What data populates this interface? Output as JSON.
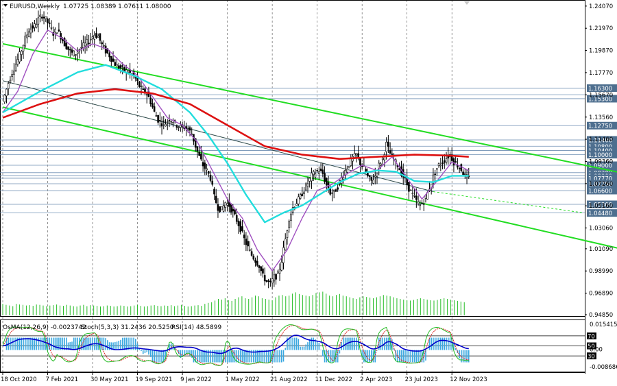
{
  "header": {
    "symbol": "EURUSD,Weekly",
    "ohlc": "1.07725 1.08389 1.07611 1.08000"
  },
  "indicator_header": {
    "osma": "OsMA(12,26,9) -0.0023742",
    "stoch": "Stoch(5,3,3) 31.2436 20.5250",
    "rsi": "RSI(14) 48.5899"
  },
  "colors": {
    "candle": "#000000",
    "volume": "#22bb22",
    "ma_purple": "#a050c0",
    "ma_cyan": "#22dddd",
    "ma_red": "#dd1111",
    "channel_green": "#22dd22",
    "trend_dark": "#2e4a4a",
    "level_line": "#6f8fb3",
    "label_bg": "#4e6f8f",
    "osma_hist": "#3aa8e0",
    "stoch_main": "#22bb22",
    "stoch_signal": "#dd2222",
    "rsi_line": "#0000cc",
    "grid": "#000000"
  },
  "chart_data": {
    "type": "candlestick",
    "timeframe": "Weekly",
    "ylim": [
      0.9485,
      1.2445
    ],
    "y_ticks": [
      "1.24070",
      "1.21970",
      "1.19870",
      "1.17770",
      "1.15670",
      "1.13560",
      "1.11460",
      "1.09360",
      "1.07260",
      "1.05160",
      "1.03060",
      "1.01090",
      "0.98990",
      "0.96890",
      "0.94850"
    ],
    "x_ticks": [
      "18 Oct 2020",
      "7 Feb 2021",
      "30 May 2021",
      "19 Sep 2021",
      "9 Jan 2022",
      "1 May 2022",
      "21 Aug 2022",
      "11 Dec 2022",
      "2 Apr 2023",
      "23 Jul 2023",
      "12 Nov 2023"
    ],
    "levels": [
      {
        "value": 1.163,
        "label": "1.16300",
        "highlight": true
      },
      {
        "value": 1.1568,
        "label": "1.15670",
        "highlight": false
      },
      {
        "value": 1.153,
        "label": "1.15300",
        "highlight": true
      },
      {
        "value": 1.1275,
        "label": "1.12750",
        "highlight": true
      },
      {
        "value": 1.114,
        "label": "1.11400",
        "highlight": true
      },
      {
        "value": 1.108,
        "label": "1.10800",
        "highlight": true
      },
      {
        "value": 1.104,
        "label": "1.10400",
        "highlight": true
      },
      {
        "value": 1.1,
        "label": "1.10000",
        "highlight": true
      },
      {
        "value": 1.09,
        "label": "1.09000",
        "highlight": true
      },
      {
        "value": 1.083,
        "label": "1.08300",
        "highlight": true
      },
      {
        "value": 1.08,
        "label": "1.08000",
        "highlight": true
      },
      {
        "value": 1.0777,
        "label": "1.07770",
        "highlight": true
      },
      {
        "value": 1.0725,
        "label": "1.07250",
        "highlight": true
      },
      {
        "value": 1.066,
        "label": "1.06600",
        "highlight": true
      },
      {
        "value": 1.053,
        "label": "1.05300",
        "highlight": true
      },
      {
        "value": 1.0448,
        "label": "1.04480",
        "highlight": true
      }
    ],
    "close_path": [
      [
        0,
        1.15
      ],
      [
        3,
        1.168
      ],
      [
        5,
        1.178
      ],
      [
        8,
        1.19
      ],
      [
        10,
        1.199
      ],
      [
        12,
        1.21
      ],
      [
        14,
        1.218
      ],
      [
        17,
        1.222
      ],
      [
        19,
        1.228
      ],
      [
        21,
        1.232
      ],
      [
        23,
        1.228
      ],
      [
        25,
        1.222
      ],
      [
        27,
        1.215
      ],
      [
        29,
        1.218
      ],
      [
        31,
        1.212
      ],
      [
        33,
        1.205
      ],
      [
        35,
        1.2
      ],
      [
        37,
        1.196
      ],
      [
        39,
        1.196
      ],
      [
        41,
        1.2
      ],
      [
        43,
        1.203
      ],
      [
        45,
        1.206
      ],
      [
        47,
        1.21
      ],
      [
        49,
        1.214
      ],
      [
        51,
        1.212
      ],
      [
        53,
        1.204
      ],
      [
        55,
        1.198
      ],
      [
        57,
        1.194
      ],
      [
        59,
        1.188
      ],
      [
        61,
        1.184
      ],
      [
        63,
        1.182
      ],
      [
        65,
        1.18
      ],
      [
        67,
        1.178
      ],
      [
        69,
        1.176
      ],
      [
        71,
        1.172
      ],
      [
        73,
        1.165
      ],
      [
        75,
        1.16
      ],
      [
        77,
        1.158
      ],
      [
        79,
        1.15
      ],
      [
        81,
        1.14
      ],
      [
        83,
        1.133
      ],
      [
        85,
        1.13
      ],
      [
        87,
        1.13
      ],
      [
        89,
        1.134
      ],
      [
        91,
        1.132
      ],
      [
        93,
        1.128
      ],
      [
        95,
        1.126
      ],
      [
        97,
        1.126
      ],
      [
        99,
        1.124
      ],
      [
        101,
        1.12
      ],
      [
        103,
        1.108
      ],
      [
        105,
        1.098
      ],
      [
        107,
        1.09
      ],
      [
        109,
        1.085
      ],
      [
        111,
        1.078
      ],
      [
        113,
        1.06
      ],
      [
        115,
        1.05
      ],
      [
        117,
        1.048
      ],
      [
        119,
        1.055
      ],
      [
        121,
        1.052
      ],
      [
        123,
        1.045
      ],
      [
        125,
        1.038
      ],
      [
        127,
        1.03
      ],
      [
        129,
        1.02
      ],
      [
        131,
        1.012
      ],
      [
        133,
        1.005
      ],
      [
        135,
        1.0
      ],
      [
        137,
        0.995
      ],
      [
        139,
        0.985
      ],
      [
        141,
        0.98
      ],
      [
        143,
        0.978
      ],
      [
        145,
        0.984
      ],
      [
        147,
        0.986
      ],
      [
        149,
        1.0
      ],
      [
        151,
        1.02
      ],
      [
        153,
        1.04
      ],
      [
        155,
        1.05
      ],
      [
        157,
        1.055
      ],
      [
        159,
        1.06
      ],
      [
        161,
        1.067
      ],
      [
        163,
        1.073
      ],
      [
        165,
        1.08
      ],
      [
        167,
        1.083
      ],
      [
        169,
        1.085
      ],
      [
        171,
        1.082
      ],
      [
        173,
        1.071
      ],
      [
        175,
        1.064
      ],
      [
        177,
        1.064
      ],
      [
        179,
        1.07
      ],
      [
        181,
        1.078
      ],
      [
        183,
        1.085
      ],
      [
        185,
        1.091
      ],
      [
        187,
        1.097
      ],
      [
        189,
        1.1
      ],
      [
        191,
        1.092
      ],
      [
        193,
        1.087
      ],
      [
        195,
        1.079
      ],
      [
        197,
        1.075
      ],
      [
        199,
        1.08
      ],
      [
        201,
        1.09
      ],
      [
        203,
        1.096
      ],
      [
        205,
        1.11
      ],
      [
        207,
        1.101
      ],
      [
        209,
        1.095
      ],
      [
        211,
        1.09
      ],
      [
        213,
        1.083
      ],
      [
        215,
        1.076
      ],
      [
        217,
        1.068
      ],
      [
        219,
        1.062
      ],
      [
        221,
        1.056
      ],
      [
        223,
        1.052
      ],
      [
        225,
        1.056
      ],
      [
        227,
        1.064
      ],
      [
        229,
        1.074
      ],
      [
        231,
        1.084
      ],
      [
        233,
        1.09
      ],
      [
        235,
        1.093
      ],
      [
        237,
        1.097
      ],
      [
        239,
        1.1
      ],
      [
        241,
        1.093
      ],
      [
        243,
        1.09
      ],
      [
        245,
        1.086
      ],
      [
        247,
        1.08
      ],
      [
        249,
        1.077
      ]
    ],
    "x_tick_index": [
      0,
      16,
      32,
      48,
      64,
      80,
      96,
      112,
      128,
      144,
      160
    ],
    "moving_averages": [
      {
        "role": "fast",
        "points": [
          [
            0,
            1.14
          ],
          [
            8,
            1.16
          ],
          [
            16,
            1.195
          ],
          [
            24,
            1.218
          ],
          [
            32,
            1.21
          ],
          [
            40,
            1.198
          ],
          [
            48,
            1.205
          ],
          [
            56,
            1.2
          ],
          [
            64,
            1.186
          ],
          [
            72,
            1.175
          ],
          [
            80,
            1.155
          ],
          [
            88,
            1.135
          ],
          [
            96,
            1.128
          ],
          [
            104,
            1.112
          ],
          [
            112,
            1.085
          ],
          [
            120,
            1.058
          ],
          [
            128,
            1.04
          ],
          [
            136,
            1.01
          ],
          [
            144,
            0.99
          ],
          [
            152,
            1.01
          ],
          [
            160,
            1.04
          ],
          [
            168,
            1.066
          ],
          [
            176,
            1.072
          ],
          [
            184,
            1.082
          ],
          [
            192,
            1.09
          ],
          [
            200,
            1.085
          ],
          [
            208,
            1.098
          ],
          [
            216,
            1.078
          ],
          [
            224,
            1.058
          ],
          [
            232,
            1.075
          ],
          [
            240,
            1.093
          ],
          [
            249,
            1.085
          ]
        ]
      },
      {
        "role": "medium",
        "points": [
          [
            0,
            1.14
          ],
          [
            20,
            1.16
          ],
          [
            40,
            1.178
          ],
          [
            55,
            1.185
          ],
          [
            70,
            1.175
          ],
          [
            85,
            1.162
          ],
          [
            100,
            1.14
          ],
          [
            110,
            1.118
          ],
          [
            120,
            1.092
          ],
          [
            130,
            1.062
          ],
          [
            140,
            1.036
          ],
          [
            150,
            1.045
          ],
          [
            160,
            1.052
          ],
          [
            170,
            1.063
          ],
          [
            180,
            1.074
          ],
          [
            190,
            1.082
          ],
          [
            200,
            1.085
          ],
          [
            210,
            1.084
          ],
          [
            220,
            1.075
          ],
          [
            230,
            1.074
          ],
          [
            240,
            1.08
          ],
          [
            249,
            1.08
          ]
        ]
      },
      {
        "role": "slow",
        "points": [
          [
            0,
            1.135
          ],
          [
            20,
            1.148
          ],
          [
            40,
            1.158
          ],
          [
            60,
            1.162
          ],
          [
            80,
            1.158
          ],
          [
            100,
            1.148
          ],
          [
            120,
            1.128
          ],
          [
            140,
            1.108
          ],
          [
            160,
            1.1
          ],
          [
            180,
            1.096
          ],
          [
            200,
            1.098
          ],
          [
            220,
            1.1
          ],
          [
            240,
            1.099
          ],
          [
            249,
            1.098
          ]
        ]
      }
    ],
    "channel_upper": [
      [
        0,
        1.205
      ],
      [
        330,
        1.083
      ]
    ],
    "channel_lower": [
      [
        0,
        1.145
      ],
      [
        330,
        1.011
      ]
    ],
    "trend_line": [
      [
        0,
        1.17
      ],
      [
        230,
        1.065
      ],
      [
        310,
        1.045
      ]
    ],
    "volume": [
      0.35,
      0.32,
      0.3,
      0.28,
      0.35,
      0.33,
      0.32,
      0.3,
      0.31,
      0.29,
      0.33,
      0.32,
      0.3,
      0.28,
      0.3,
      0.31,
      0.33,
      0.3,
      0.29,
      0.32,
      0.3,
      0.28,
      0.27,
      0.3,
      0.32,
      0.28,
      0.31,
      0.3,
      0.29,
      0.27,
      0.28,
      0.3,
      0.29,
      0.27,
      0.28,
      0.3,
      0.29,
      0.27,
      0.28,
      0.3,
      0.32,
      0.29,
      0.27,
      0.28,
      0.3,
      0.31,
      0.29,
      0.28,
      0.3,
      0.29,
      0.31,
      0.28,
      0.3,
      0.32,
      0.29,
      0.27,
      0.28,
      0.3,
      0.31,
      0.29,
      0.35,
      0.38,
      0.4,
      0.45,
      0.5,
      0.48,
      0.52,
      0.46,
      0.44,
      0.5,
      0.55,
      0.58,
      0.52,
      0.5,
      0.55,
      0.6,
      0.58,
      0.52,
      0.5,
      0.48,
      0.46,
      0.55,
      0.6,
      0.62,
      0.58,
      0.6,
      0.66,
      0.7,
      0.65,
      0.62,
      0.6,
      0.58,
      0.62,
      0.68,
      0.7,
      0.72,
      0.66,
      0.6,
      0.58,
      0.62,
      0.65,
      0.6,
      0.58,
      0.55,
      0.52,
      0.5,
      0.55,
      0.58,
      0.56,
      0.54,
      0.52,
      0.55,
      0.58,
      0.62,
      0.6,
      0.58,
      0.55,
      0.52,
      0.5,
      0.48,
      0.46,
      0.45,
      0.47,
      0.5,
      0.52,
      0.5,
      0.48,
      0.46,
      0.45,
      0.47,
      0.5,
      0.52,
      0.5,
      0.48,
      0.46,
      0.44,
      0.42,
      0.4
    ]
  },
  "osma_ticks": [
    "0.0154154",
    "0.00",
    "-0.008686"
  ],
  "oscillator_ticks": [
    "70",
    "50",
    "30"
  ]
}
